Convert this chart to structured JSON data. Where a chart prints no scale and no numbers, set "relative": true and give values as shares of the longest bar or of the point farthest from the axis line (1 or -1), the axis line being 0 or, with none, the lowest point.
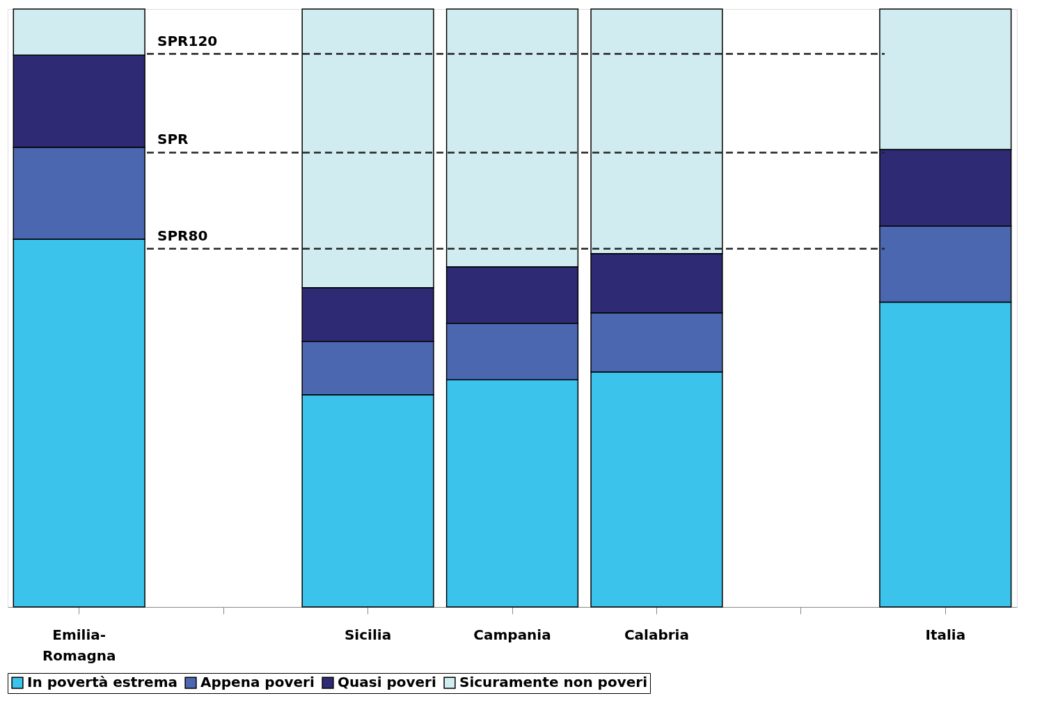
{
  "chart_data": {
    "type": "bar",
    "stacked": true,
    "relative": true,
    "categories": [
      "Emilia-Romagna",
      null,
      "Sicilia",
      "Campania",
      "Calabria",
      null,
      "Italia"
    ],
    "series": [
      {
        "name": "In povertà estrema",
        "color": "#3bc3ec",
        "values": [
          0.615,
          null,
          0.355,
          0.38,
          0.393,
          null,
          0.51
        ]
      },
      {
        "name": "Appena poveri",
        "color": "#4a67b0",
        "values": [
          0.154,
          null,
          0.089,
          0.094,
          0.099,
          null,
          0.127
        ]
      },
      {
        "name": "Quasi poveri",
        "color": "#2e2a73",
        "values": [
          0.154,
          null,
          0.09,
          0.095,
          0.099,
          null,
          0.128
        ]
      },
      {
        "name": "Sicuramente non poveri",
        "color": "#d0ecf0",
        "values": [
          0.077,
          null,
          0.466,
          0.431,
          0.409,
          null,
          0.235
        ]
      }
    ],
    "ref_lines": [
      {
        "axis": "y",
        "value": 0.925,
        "label": "SPR120",
        "line_style": "dashed"
      },
      {
        "axis": "y",
        "value": 0.76,
        "label": "SPR",
        "line_style": "dashed"
      },
      {
        "axis": "y",
        "value": 0.599,
        "label": "SPR80",
        "line_style": "dashed"
      }
    ],
    "legend": "bottom"
  }
}
